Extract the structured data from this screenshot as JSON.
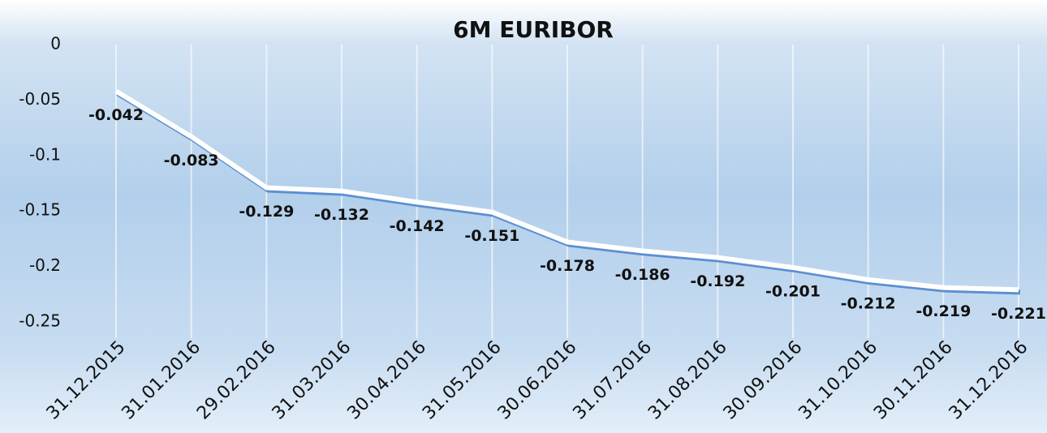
{
  "chart_data": {
    "type": "line",
    "title": "6M EURIBOR",
    "categories": [
      "31.12.2015",
      "31.01.2016",
      "29.02.2016",
      "31.03.2016",
      "30.04.2016",
      "31.05.2016",
      "30.06.2016",
      "31.07.2016",
      "31.08.2016",
      "30.09.2016",
      "31.10.2016",
      "30.11.2016",
      "31.12.2016"
    ],
    "values": [
      -0.042,
      -0.083,
      -0.129,
      -0.132,
      -0.142,
      -0.151,
      -0.178,
      -0.186,
      -0.192,
      -0.201,
      -0.212,
      -0.219,
      -0.221
    ],
    "color": "#ffffff",
    "ylim": [
      -0.25,
      0
    ],
    "yticks": [
      0,
      -0.05,
      -0.1,
      -0.15,
      -0.2,
      -0.25
    ]
  }
}
